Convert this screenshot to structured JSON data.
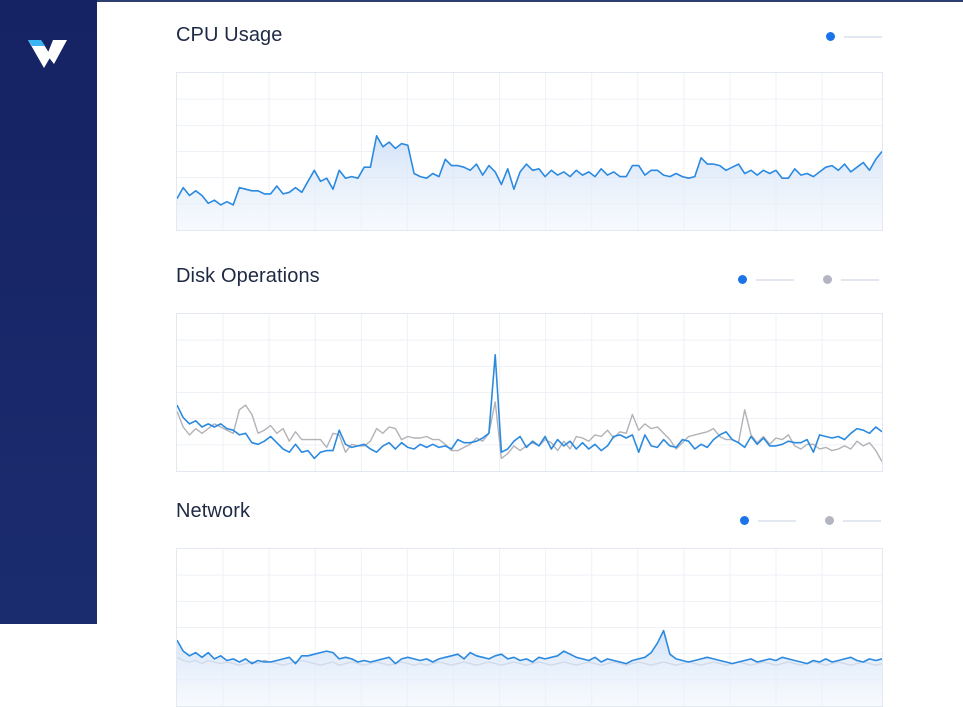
{
  "colors": {
    "sidebar": "#152263",
    "series_primary": "#2b8ae0",
    "series_secondary": "#b2b2b7",
    "logo_accent": "#3ab4f2"
  },
  "brand": {
    "logo_icon": "vultr-v-logo-icon"
  },
  "panels": [
    {
      "title": "CPU Usage",
      "legend": [
        {
          "color": "blue"
        }
      ]
    },
    {
      "title": "Disk Operations",
      "legend": [
        {
          "color": "blue"
        },
        {
          "color": "gray"
        }
      ]
    },
    {
      "title": "Network",
      "legend": [
        {
          "color": "blue"
        },
        {
          "color": "gray"
        }
      ]
    }
  ],
  "chart_data": [
    {
      "type": "area",
      "title": "CPU Usage",
      "ylim": [
        0,
        100
      ],
      "grid": true,
      "legend": "top-right",
      "series": [
        {
          "values": [
            20,
            27,
            22,
            25,
            22,
            17,
            19,
            16,
            18,
            16,
            27,
            26,
            25,
            25,
            23,
            23,
            28,
            23,
            24,
            27,
            24,
            31,
            38,
            31,
            33,
            26,
            38,
            33,
            34,
            33,
            40,
            40,
            60,
            53,
            56,
            52,
            55,
            54,
            36,
            34,
            33,
            36,
            34,
            45,
            41,
            41,
            40,
            38,
            42,
            35,
            41,
            37,
            29,
            39,
            26,
            37,
            42,
            38,
            39,
            34,
            38,
            35,
            37,
            34,
            38,
            35,
            37,
            34,
            39,
            35,
            37,
            34,
            34,
            41,
            41,
            35,
            38,
            38,
            35,
            34,
            36,
            34,
            33,
            34,
            46,
            42,
            42,
            41,
            38,
            40,
            42,
            36,
            38,
            35,
            38,
            36,
            38,
            33,
            33,
            39,
            35,
            36,
            34,
            37,
            40,
            41,
            38,
            42,
            37,
            40,
            43,
            38,
            45,
            50
          ]
        }
      ]
    },
    {
      "type": "line",
      "title": "Disk Operations",
      "ylim": [
        0,
        100
      ],
      "grid": true,
      "legend": "top-right",
      "series": [
        {
          "values": [
            42,
            34,
            30,
            32,
            28,
            30,
            28,
            30,
            27,
            26,
            23,
            24,
            18,
            17,
            19,
            22,
            18,
            14,
            12,
            17,
            12,
            13,
            8,
            12,
            13,
            13,
            26,
            17,
            15,
            16,
            17,
            14,
            12,
            16,
            18,
            14,
            18,
            15,
            14,
            17,
            15,
            17,
            15,
            16,
            14,
            20,
            18,
            18,
            19,
            21,
            24,
            74,
            12,
            14,
            19,
            22,
            15,
            19,
            16,
            22,
            14,
            20,
            16,
            19,
            14,
            18,
            14,
            17,
            13,
            16,
            22,
            23,
            21,
            23,
            12,
            23,
            16,
            15,
            20,
            16,
            15,
            20,
            19,
            14,
            17,
            15,
            20,
            23,
            25,
            20,
            18,
            15,
            22,
            17,
            21,
            16,
            16,
            17,
            19,
            18,
            18,
            20,
            12,
            23,
            22,
            21,
            22,
            20,
            24,
            27,
            26,
            24,
            28,
            25
          ]
        },
        {
          "values": [
            38,
            28,
            23,
            27,
            24,
            27,
            30,
            28,
            26,
            24,
            39,
            42,
            36,
            24,
            26,
            29,
            24,
            27,
            19,
            25,
            20,
            20,
            20,
            20,
            15,
            24,
            23,
            12,
            17,
            16,
            16,
            19,
            27,
            24,
            28,
            27,
            20,
            22,
            21,
            21,
            22,
            20,
            20,
            17,
            13,
            13,
            15,
            17,
            21,
            19,
            24,
            44,
            8,
            11,
            16,
            13,
            16,
            18,
            16,
            20,
            18,
            13,
            19,
            14,
            22,
            21,
            19,
            23,
            22,
            26,
            21,
            25,
            24,
            36,
            26,
            30,
            27,
            28,
            24,
            20,
            14,
            18,
            22,
            23,
            24,
            25,
            27,
            22,
            20,
            20,
            18,
            39,
            23,
            18,
            22,
            17,
            21,
            20,
            23,
            16,
            14,
            17,
            17,
            14,
            15,
            13,
            14,
            16,
            14,
            19,
            16,
            18,
            13,
            6
          ]
        }
      ]
    },
    {
      "type": "area",
      "title": "Network",
      "ylim": [
        0,
        100
      ],
      "grid": true,
      "legend": "top-right",
      "series": [
        {
          "values": [
            42,
            35,
            32,
            34,
            31,
            34,
            30,
            32,
            29,
            30,
            28,
            30,
            27,
            29,
            28,
            28,
            29,
            30,
            31,
            27,
            32,
            32,
            33,
            34,
            35,
            34,
            30,
            31,
            30,
            28,
            29,
            28,
            29,
            30,
            31,
            27,
            30,
            31,
            30,
            29,
            30,
            28,
            30,
            31,
            32,
            33,
            30,
            34,
            32,
            31,
            30,
            32,
            33,
            30,
            31,
            29,
            30,
            28,
            31,
            30,
            31,
            32,
            35,
            33,
            31,
            30,
            29,
            31,
            28,
            30,
            29,
            28,
            27,
            29,
            30,
            31,
            34,
            40,
            48,
            33,
            30,
            29,
            28,
            29,
            30,
            31,
            30,
            29,
            28,
            27,
            28,
            29,
            30,
            28,
            29,
            30,
            29,
            31,
            30,
            29,
            28,
            27,
            29,
            28,
            30,
            28,
            29,
            30,
            31,
            29,
            28,
            30,
            29,
            30
          ]
        },
        {
          "values": [
            31,
            29,
            28,
            29,
            27,
            29,
            28,
            27,
            28,
            27,
            26,
            27,
            28,
            27,
            29,
            28,
            27,
            26,
            27,
            28,
            29,
            28,
            27,
            26,
            27,
            28,
            26,
            27,
            28,
            27,
            26,
            27,
            28,
            27,
            26,
            27,
            28,
            27,
            26,
            27,
            26,
            27,
            28,
            27,
            26,
            27,
            28,
            27,
            26,
            27,
            28,
            27,
            26,
            27,
            28,
            27,
            26,
            27,
            28,
            27,
            26,
            27,
            28,
            27,
            26,
            27,
            28,
            27,
            26,
            27,
            28,
            27,
            26,
            27,
            28,
            27,
            26,
            27,
            28,
            27,
            26,
            27,
            28,
            27,
            26,
            27,
            28,
            27,
            26,
            27,
            28,
            27,
            26,
            27,
            28,
            27,
            26,
            27,
            28,
            27,
            26,
            27,
            28,
            27,
            26,
            27,
            28,
            27,
            26,
            27,
            28,
            27,
            26,
            27
          ]
        }
      ]
    }
  ]
}
